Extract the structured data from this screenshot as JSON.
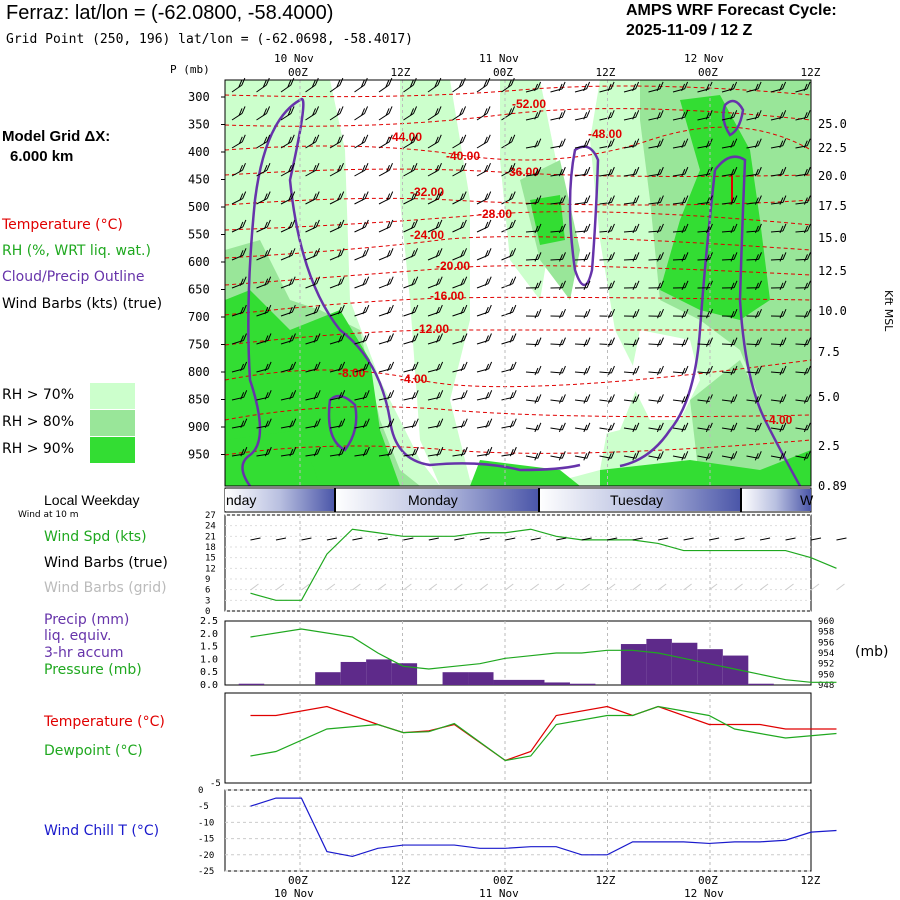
{
  "header": {
    "title": "Ferraz:  lat/lon = (-62.0800, -58.4000)",
    "grid_point": "Grid Point (250, 196) lat/lon = (-62.0698, -58.4017)",
    "cycle_label": "AMPS WRF Forecast Cycle:",
    "cycle_value": "2025-11-09 / 12  Z"
  },
  "left_panel": {
    "grid_label": "Model Grid ΔX:",
    "grid_value": "6.000 km",
    "temperature": "Temperature (°C)",
    "rh": "RH (%, WRT liq. wat.)",
    "cloud": "Cloud/Precip Outline",
    "winds": "Wind Barbs (kts) (true)",
    "rh70": "RH > 70%",
    "rh80": "RH > 80%",
    "rh90": "RH > 90%",
    "rh_colors": [
      "#ccffcc",
      "#99e699",
      "#33dd33"
    ],
    "local_weekday": "Local Weekday",
    "wind10m": "Wind at 10 m",
    "wind_spd": "Wind Spd (kts)",
    "wind_barbs_true": "Wind Barbs (true)",
    "wind_barbs_grid": "Wind Barbs (grid)",
    "precip1": "Precip (mm)",
    "precip2": "liq. equiv.",
    "precip3": "3-hr accum",
    "pressure": "Pressure (mb)",
    "pressure_unit": "(mb)",
    "temp2": "Temperature (°C)",
    "dewpoint": "Dewpoint (°C)",
    "windchill": "Wind Chill T (°C)"
  },
  "time_axis": {
    "top_labels": [
      {
        "hour": "00Z",
        "date": "10 Nov"
      },
      {
        "hour": "12Z",
        "date": ""
      },
      {
        "hour": "00Z",
        "date": "11 Nov"
      },
      {
        "hour": "12Z",
        "date": ""
      },
      {
        "hour": "00Z",
        "date": "12 Nov"
      },
      {
        "hour": "12Z",
        "date": ""
      }
    ],
    "weekdays": [
      "nday",
      "Monday",
      "Tuesday",
      "W"
    ],
    "p_label": "P (mb)",
    "kft_label": "Kft MSL"
  },
  "chart_data": [
    {
      "type": "heatmap",
      "name": "cross-section",
      "pressure_levels": [
        300,
        350,
        400,
        450,
        500,
        550,
        600,
        650,
        700,
        750,
        800,
        850,
        900,
        950
      ],
      "kft_ticks": [
        "25.0",
        "22.5",
        "20.0",
        "17.5",
        "15.0",
        "12.5",
        "10.0",
        "7.5",
        "5.0",
        "2.5",
        "0.89"
      ],
      "temperature_labels": [
        "-52.00",
        "-48.00",
        "-44.00",
        "-40.00",
        "-36.00",
        "-32.00",
        "-28.00",
        "-24.00",
        "-20.00",
        "-16.00",
        "-12.00",
        "-8.00",
        "-4.00",
        "-4.00"
      ]
    },
    {
      "type": "line",
      "name": "wind speed",
      "ylabel": "Wind Spd (kts)",
      "yticks": [
        0,
        3,
        6,
        9,
        12,
        15,
        18,
        21,
        24,
        27
      ],
      "ylim": [
        0,
        27
      ],
      "hours": [
        0,
        3,
        6,
        9,
        12,
        15,
        18,
        21,
        24,
        27,
        30,
        33,
        36,
        39,
        42,
        45,
        48,
        51,
        54,
        57,
        60,
        63,
        66,
        69
      ],
      "values": [
        5,
        3,
        3,
        16,
        23,
        22,
        21,
        21,
        21,
        22,
        22,
        23,
        21,
        20,
        20,
        20,
        19,
        17,
        17,
        17,
        17,
        17,
        15,
        12
      ]
    },
    {
      "type": "bar",
      "name": "precip and pressure",
      "yticks": [
        "0.0",
        "0.5",
        "1.0",
        "1.5",
        "2.0",
        "2.5"
      ],
      "ylim": [
        0,
        2.5
      ],
      "y2ticks": [
        "948",
        "950",
        "952",
        "954",
        "956",
        "958",
        "960"
      ],
      "y2lim": [
        948,
        960
      ],
      "bar_hours": [
        0,
        3,
        6,
        9,
        12,
        15,
        18,
        21,
        24,
        27,
        30,
        33,
        36,
        39,
        42,
        45,
        48,
        51,
        54,
        57,
        60,
        63,
        66
      ],
      "precip": [
        0.05,
        0,
        0,
        0.5,
        0.9,
        1.0,
        0.85,
        0,
        0.5,
        0.5,
        0.2,
        0.2,
        0.1,
        0.05,
        0,
        1.6,
        1.8,
        1.65,
        1.4,
        1.15,
        0.05,
        0,
        0
      ],
      "pressure_hours": [
        0,
        6,
        12,
        15,
        18,
        21,
        24,
        27,
        30,
        33,
        36,
        39,
        42,
        45,
        48,
        51,
        54,
        57,
        60,
        63,
        66,
        69
      ],
      "pressure": [
        957,
        958.5,
        957,
        954,
        951.5,
        951,
        951.5,
        952,
        953,
        953.5,
        954,
        954,
        954.5,
        954.5,
        954,
        953,
        952,
        951,
        950,
        949,
        948.5,
        948.5
      ]
    },
    {
      "type": "line",
      "name": "temperature and dewpoint",
      "yticks": [
        "-5"
      ],
      "ylim": [
        -5,
        5
      ],
      "hours": [
        0,
        3,
        9,
        15,
        18,
        21,
        24,
        30,
        33,
        36,
        42,
        45,
        48,
        54,
        57,
        60,
        63,
        69
      ],
      "temperature": [
        2.5,
        2.5,
        3.5,
        1.5,
        0.6,
        0.8,
        1.5,
        -2.5,
        -1.5,
        2.5,
        3.5,
        2.5,
        3.5,
        1.5,
        1.5,
        1.5,
        1.0,
        1.0
      ],
      "dewpoint": [
        -2.0,
        -1.5,
        1.0,
        1.5,
        0.6,
        0.7,
        1.6,
        -2.5,
        -2.0,
        1.5,
        2.5,
        2.5,
        3.5,
        2.5,
        1.0,
        0.5,
        0.0,
        0.5
      ]
    },
    {
      "type": "line",
      "name": "wind chill",
      "yticks": [
        0,
        -5,
        -10,
        -15,
        -20,
        -25
      ],
      "ylim": [
        -25,
        0
      ],
      "hours": [
        0,
        3,
        6,
        9,
        12,
        15,
        18,
        21,
        24,
        27,
        30,
        33,
        36,
        39,
        42,
        45,
        48,
        51,
        54,
        57,
        60,
        63,
        66,
        69
      ],
      "values": [
        -5,
        -2.5,
        -2.5,
        -19,
        -20.5,
        -18,
        -17,
        -17,
        -17,
        -18,
        -18,
        -17.5,
        -17.5,
        -20,
        -20,
        -16,
        -16,
        -16,
        -16.5,
        -16,
        -16,
        -15.5,
        -13,
        -12.5
      ]
    }
  ]
}
